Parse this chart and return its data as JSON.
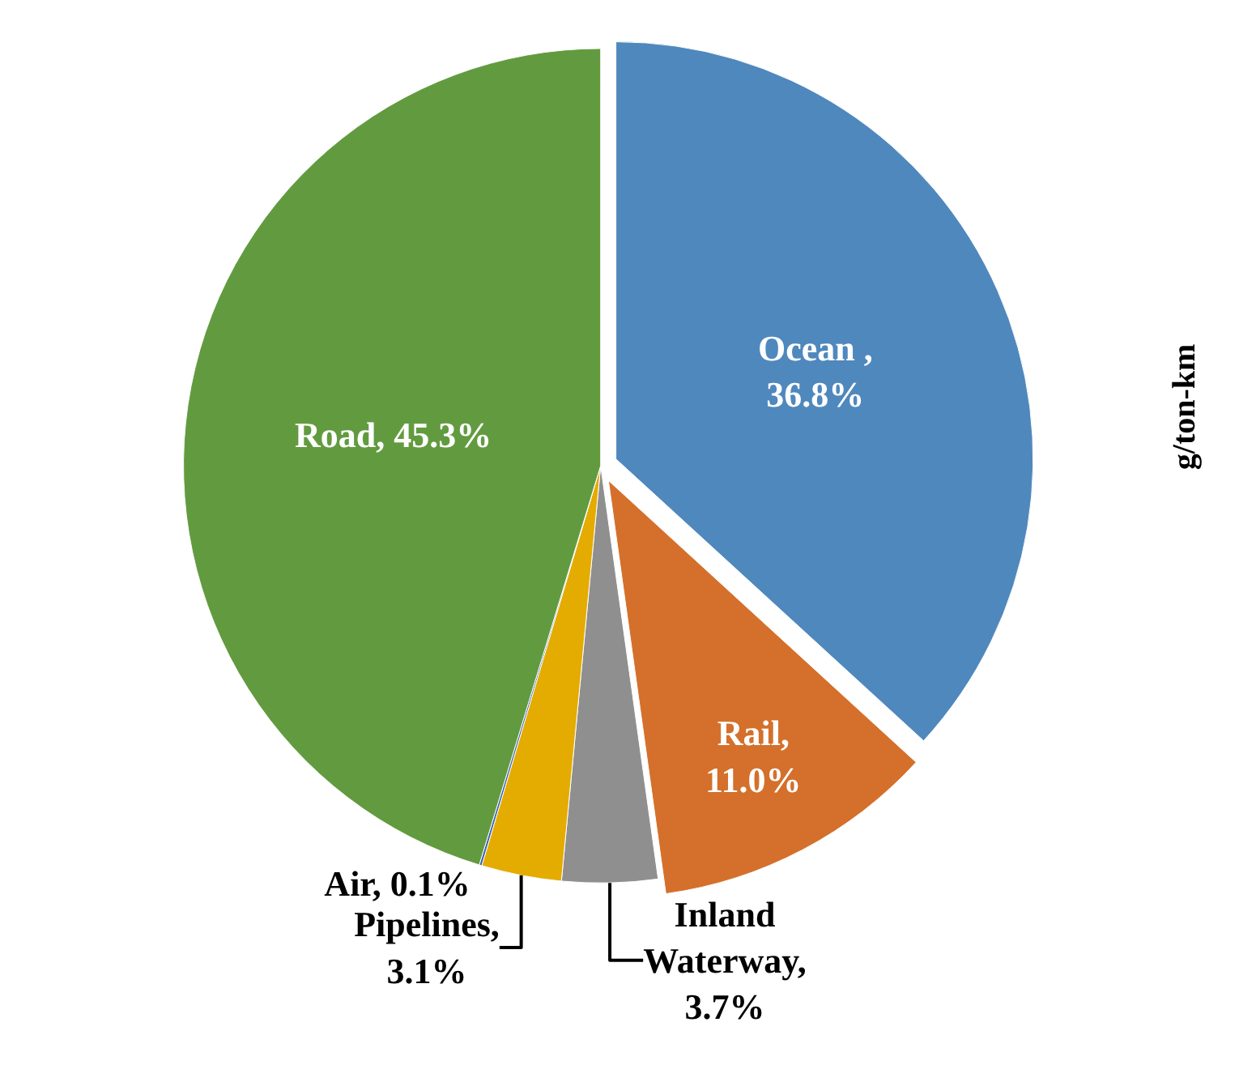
{
  "chart_data": {
    "type": "pie",
    "ylabel": "g/ton-km",
    "categories": [
      "Ocean ",
      "Rail",
      "Inland Waterway",
      "Pipelines",
      "Air",
      "Road"
    ],
    "values": [
      36.8,
      11.0,
      3.7,
      3.1,
      0.1,
      45.3
    ],
    "colors": [
      "#4f88bd",
      "#d4702b",
      "#8f8f8f",
      "#e4ab00",
      "#3b64ad",
      "#629b3f"
    ],
    "value_labels": [
      ",\n36.8%",
      ",\n11.0%",
      ",\n3.7%",
      ",\n3.1%",
      ", 0.1%",
      ", 45.3%"
    ],
    "legend": false
  }
}
